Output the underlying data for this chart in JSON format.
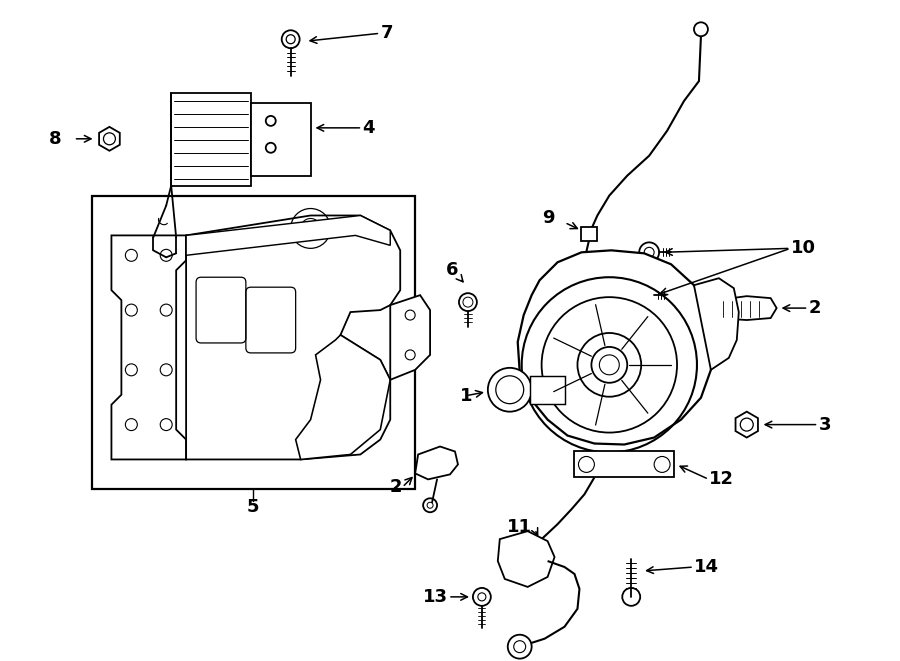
{
  "background_color": "#ffffff",
  "line_color": "#000000",
  "figure_width": 9.0,
  "figure_height": 6.61,
  "dpi": 100,
  "label_fontsize": 13,
  "arrow_lw": 1.0,
  "parts_lw": 1.3
}
